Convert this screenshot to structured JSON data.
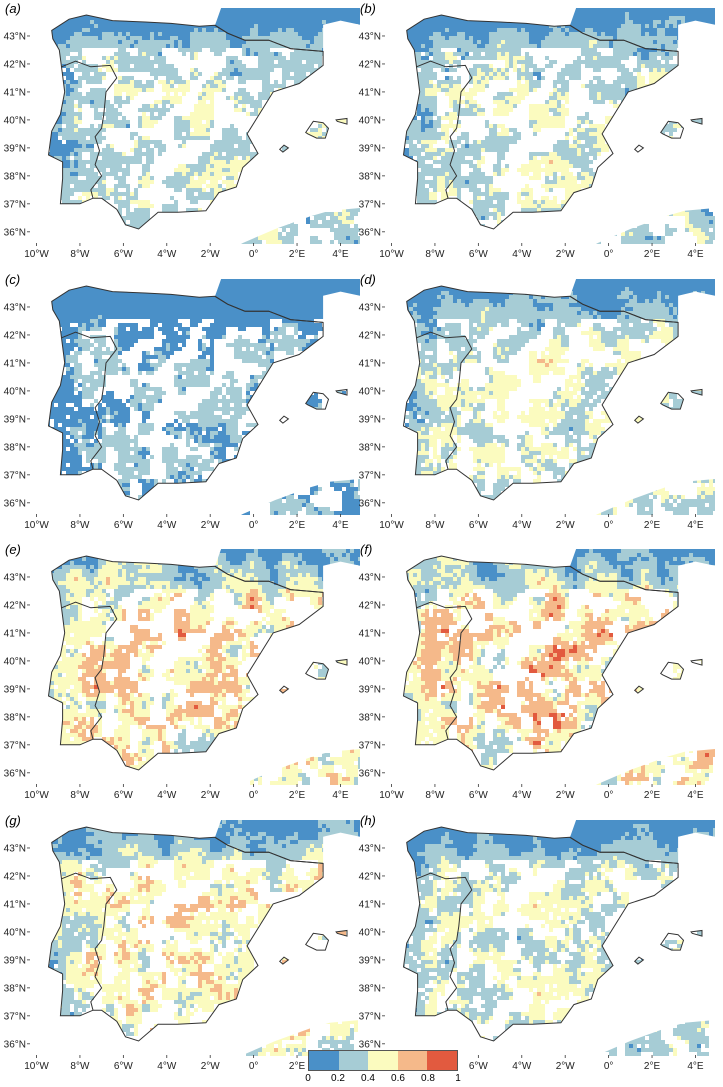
{
  "panels": [
    {
      "label": "(a)",
      "profile": "a"
    },
    {
      "label": "(b)",
      "profile": "b"
    },
    {
      "label": "(c)",
      "profile": "c"
    },
    {
      "label": "(d)",
      "profile": "d"
    },
    {
      "label": "(e)",
      "profile": "e"
    },
    {
      "label": "(f)",
      "profile": "f"
    },
    {
      "label": "(g)",
      "profile": "g"
    },
    {
      "label": "(h)",
      "profile": "h"
    }
  ],
  "axes": {
    "lon_ticks": [
      "10°W",
      "8°W",
      "6°W",
      "4°W",
      "2°W",
      "0°",
      "2°E",
      "4°E"
    ],
    "lon_values": [
      -10,
      -8,
      -6,
      -4,
      -2,
      0,
      2,
      4
    ],
    "lat_ticks": [
      "43°N",
      "42°N",
      "41°N",
      "40°N",
      "39°N",
      "38°N",
      "37°N",
      "36°N"
    ],
    "lat_values": [
      43,
      42,
      41,
      40,
      39,
      38,
      37,
      36
    ],
    "lon_range": [
      -10.3,
      4.9
    ],
    "lat_range": [
      35.6,
      44.0
    ]
  },
  "colorbar": {
    "ticks": [
      "0",
      "0.2",
      "0.4",
      "0.6",
      "0.8",
      "1"
    ],
    "colors": [
      "#4a90c8",
      "#a6ccd5",
      "#fbfbbf",
      "#f5b98a",
      "#e25a3f"
    ]
  },
  "style": {
    "outline_color": "#333333",
    "background": "#ffffff"
  }
}
